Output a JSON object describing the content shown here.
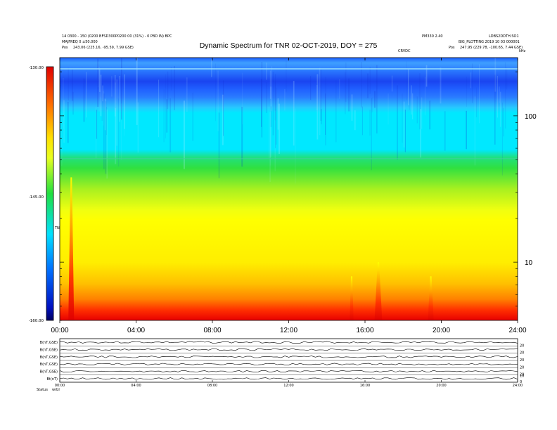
{
  "header": {
    "left_line1": "14 0300 - 150 (0200 BFSD300P0200 00 (31%) - 0 PBD IN) BPC",
    "left_line2": "MAJFREQ 0 ±50.000",
    "left_pos_label": "Pos",
    "left_pos_value": "243.06 (225.16, -95.59, 7.99 GSE)",
    "right_line1": "PM330 2.40",
    "right_line2": "LDBS2DDTH.SO1",
    "right_line3": "BIG_PLOTTING 2019 10 03 000001",
    "right_pos_label": "Pos",
    "right_pos_value": "247.95 (229.78, -100.65, 7.44 GSE)",
    "annotation": "CRVDC"
  },
  "colorbar": {
    "label": "TNR",
    "ticks": [
      "-130.00",
      "-145.00",
      "-160.00"
    ]
  },
  "chart_data": {
    "type": "heatmap",
    "title": "Dynamic Spectrum for TNR 02-OCT-2019, DOY = 275",
    "x_ticks": [
      "00:00",
      "04:00",
      "08:00",
      "12:00",
      "16:00",
      "20:00",
      "24:00"
    ],
    "x_range_hours": [
      0,
      24
    ],
    "y_scale": "log",
    "y_range": [
      4,
      250
    ],
    "y_tick_values": [
      10,
      100
    ],
    "y_ticks": [
      "10",
      "100"
    ],
    "y_top_label": "kHz",
    "color_range": [
      -160,
      -130
    ],
    "colormap": [
      "#e00000",
      "#ff7000",
      "#ffe000",
      "#e8ff20",
      "#40e040",
      "#00e0ff",
      "#0080ff",
      "#0020c0"
    ],
    "features": [
      {
        "name": "intensification",
        "start_h": 0.45,
        "end_h": 0.75,
        "top_khz": 38
      },
      {
        "name": "intensification",
        "start_h": 15.2,
        "end_h": 15.4,
        "top_khz": 8
      },
      {
        "name": "intensification",
        "start_h": 16.5,
        "end_h": 16.9,
        "top_khz": 10
      },
      {
        "name": "intensification",
        "start_h": 19.3,
        "end_h": 19.6,
        "top_khz": 8
      }
    ]
  },
  "lower_panel": {
    "rows": [
      {
        "left": "B(nT,GSE)",
        "right": [
          "",
          "20"
        ]
      },
      {
        "left": "B(nT,GSE)",
        "right": [
          "",
          "20"
        ]
      },
      {
        "left": "B(nT,GSE)",
        "right": [
          "",
          "20"
        ]
      },
      {
        "left": "B(nT,GSE)",
        "right": [
          "",
          "20"
        ]
      },
      {
        "left": "B(nT,GSE)",
        "right": [
          "",
          "20"
        ]
      },
      {
        "left": "Bt(nT)",
        "right": [
          "10",
          "0"
        ]
      }
    ],
    "x_ticks": [
      "00:00",
      "04:00",
      "08:00",
      "12:00",
      "16:00",
      "20:00",
      "24:00"
    ],
    "status_label": "Status",
    "status_value": "wrbl"
  }
}
